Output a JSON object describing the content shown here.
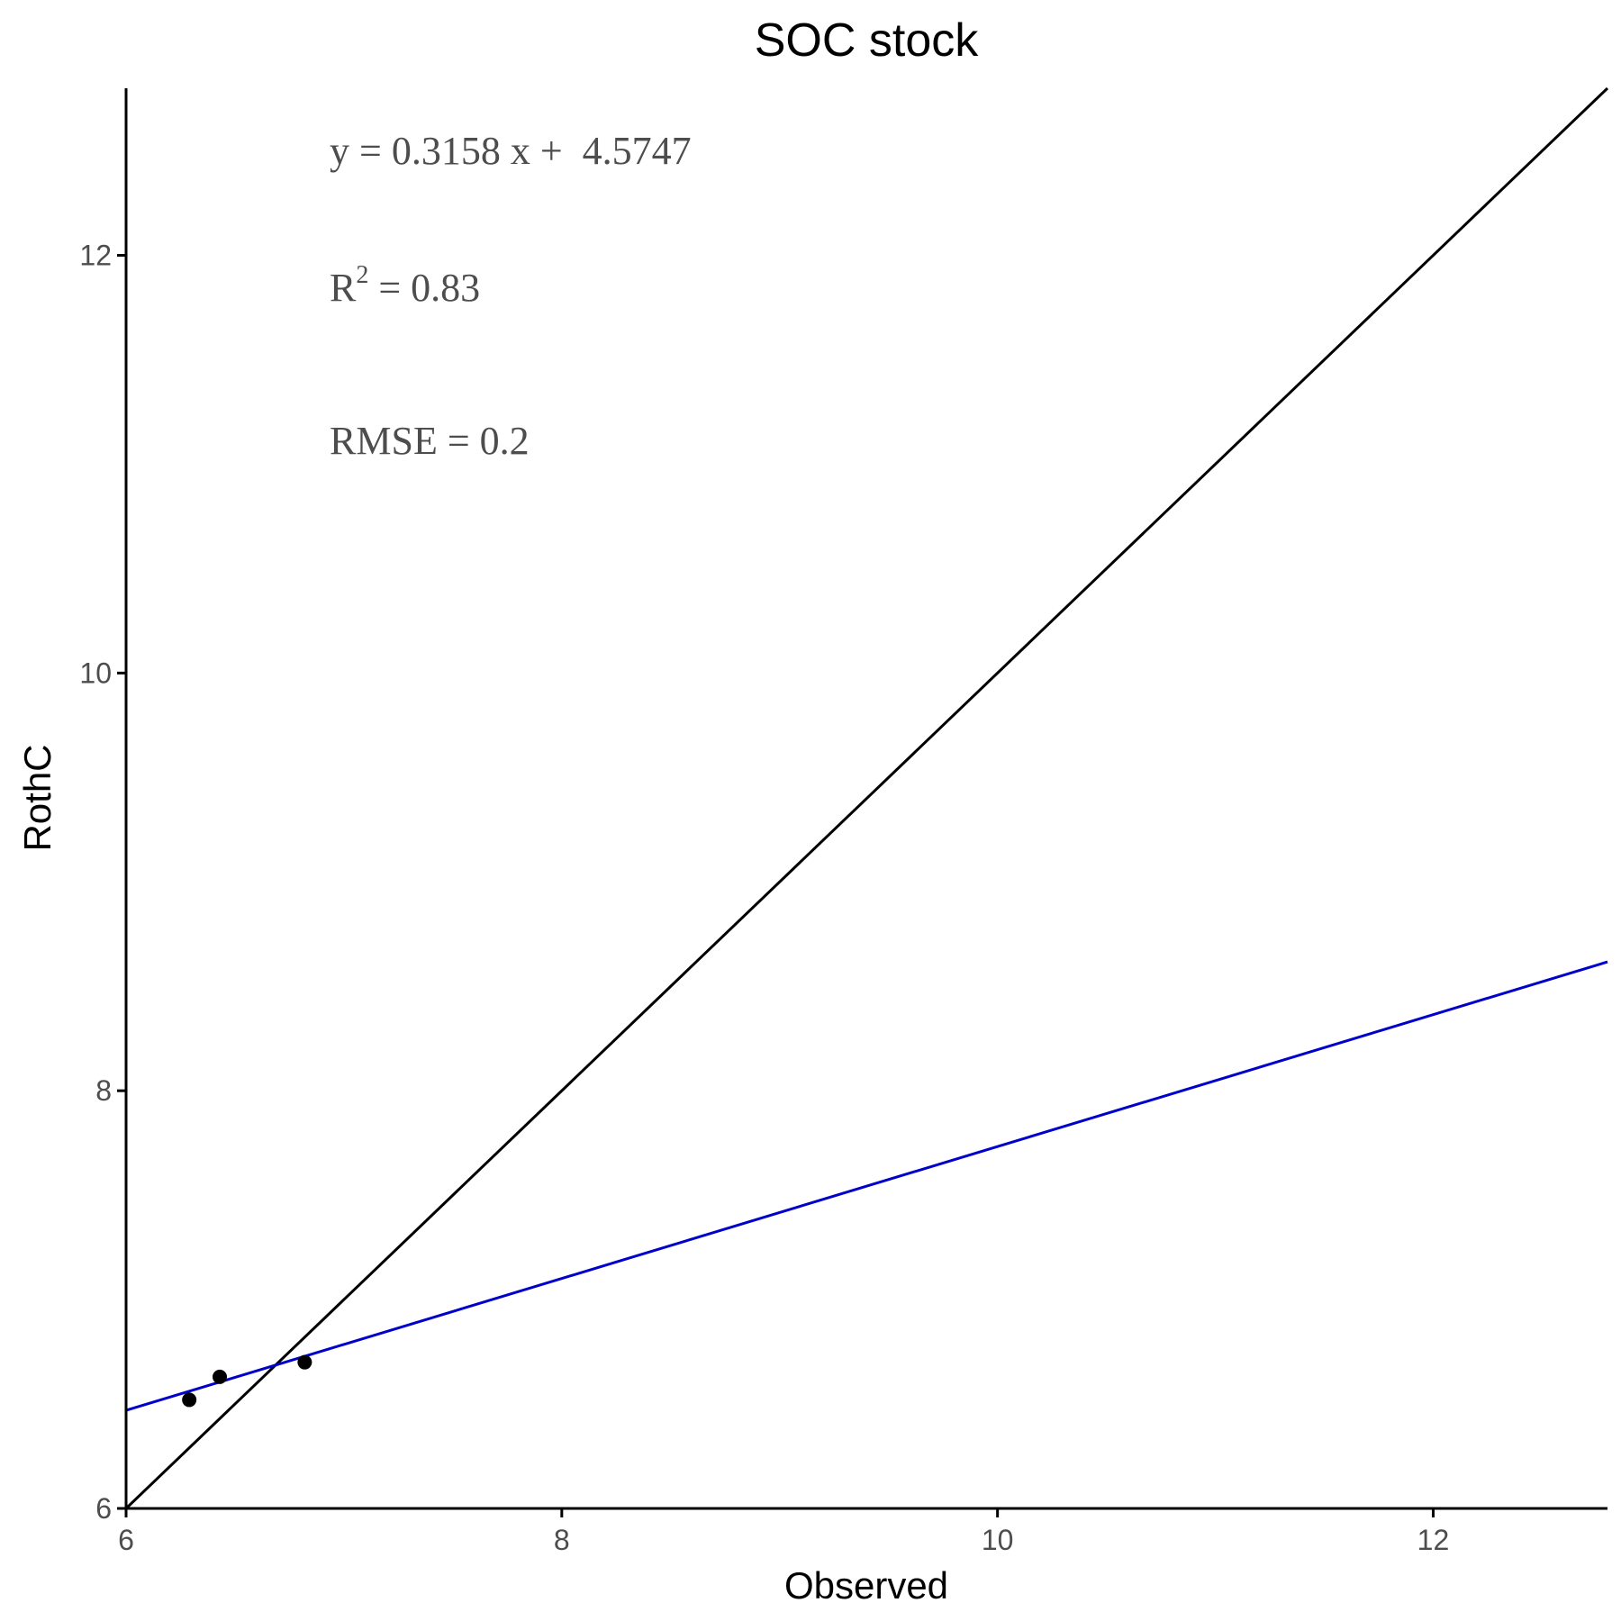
{
  "chart_data": {
    "type": "scatter",
    "title": "SOC stock",
    "xlabel": "Observed",
    "ylabel": "RothC",
    "xlim": [
      6,
      12.8
    ],
    "ylim": [
      6,
      12.8
    ],
    "x_ticks": [
      6,
      8,
      10,
      12
    ],
    "y_ticks": [
      6,
      8,
      10,
      12
    ],
    "grid": false,
    "points": [
      {
        "x": 6.29,
        "y": 6.52
      },
      {
        "x": 6.43,
        "y": 6.63
      },
      {
        "x": 6.82,
        "y": 6.7
      }
    ],
    "identity_line": {
      "slope": 1,
      "intercept": 0,
      "color": "#000000"
    },
    "regression_line": {
      "slope": 0.3158,
      "intercept": 4.5747,
      "color": "#0000cc"
    },
    "annotations": {
      "equation": "y = 0.3158 x +  4.5747",
      "r2_base": "R",
      "r2_sup": "2",
      "r2_rest": " = 0.83",
      "rmse": "RMSE = 0.2"
    }
  }
}
